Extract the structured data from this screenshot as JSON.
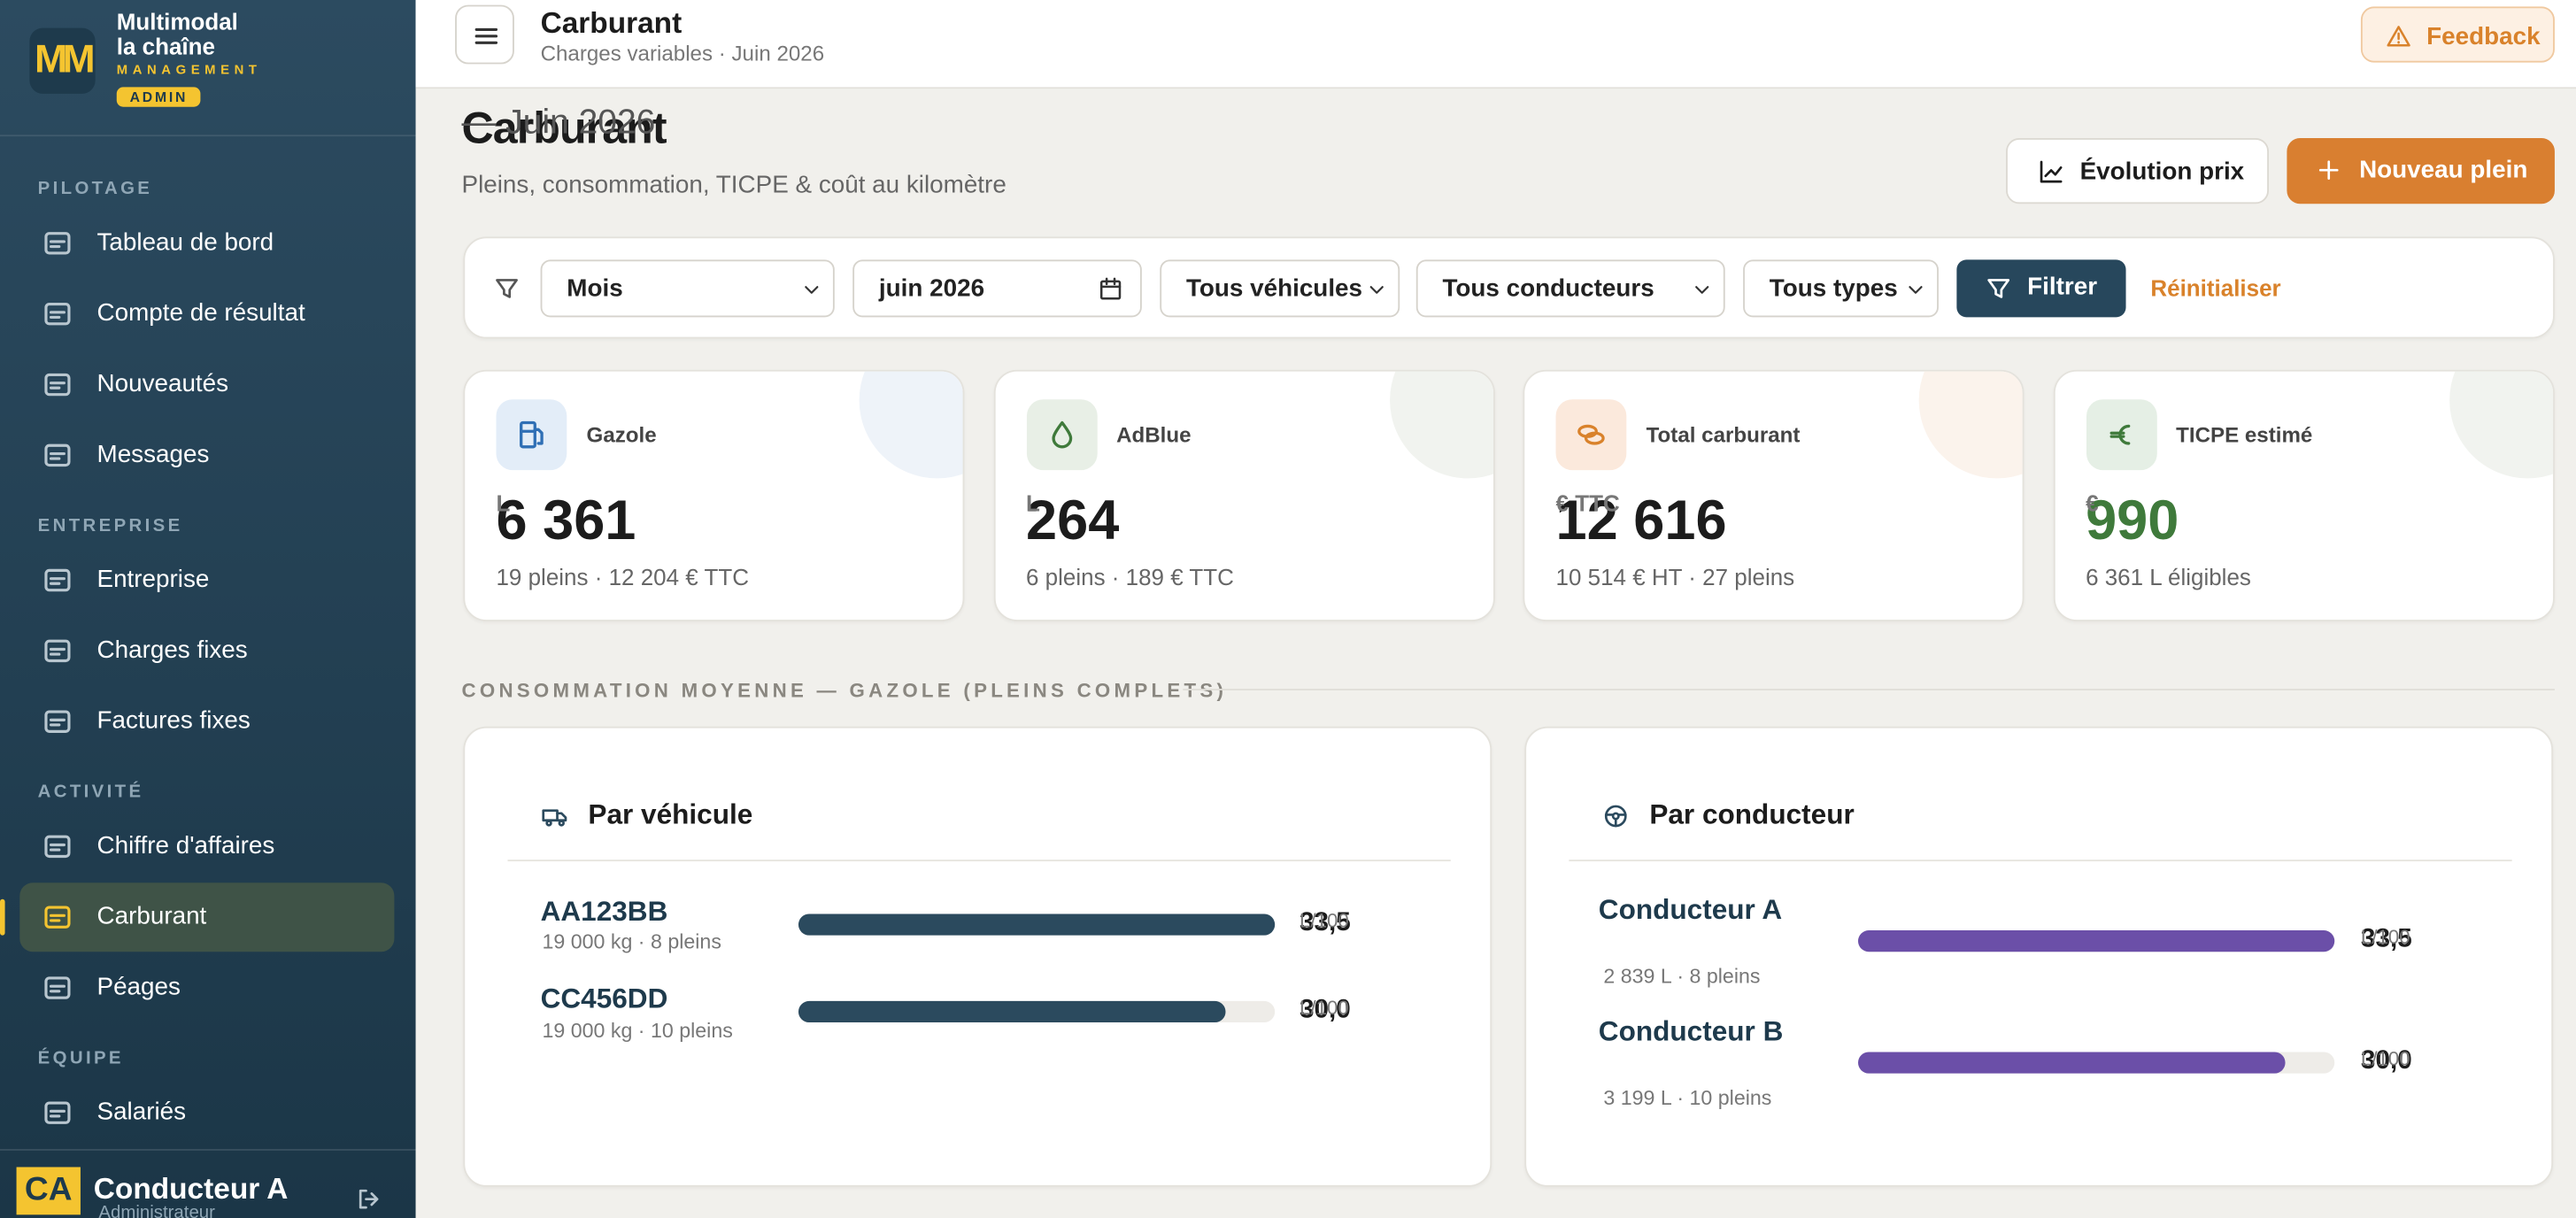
{
  "sidebar": {
    "brand": {
      "logo": "MM",
      "line1": "Multimodal",
      "line2": "la chaîne",
      "tag": "MANAGEMENT",
      "badge": "ADMIN"
    },
    "sections": [
      {
        "title": "PILOTAGE",
        "items": [
          "Tableau de bord",
          "Compte de résultat",
          "Nouveautés",
          "Messages"
        ]
      },
      {
        "title": "ENTREPRISE",
        "items": [
          "Entreprise",
          "Charges fixes",
          "Factures fixes"
        ]
      },
      {
        "title": "ACTIVITÉ",
        "items": [
          "Chiffre d'affaires",
          "Carburant",
          "Péages"
        ]
      },
      {
        "title": "ÉQUIPE",
        "items": [
          "Salariés"
        ]
      }
    ],
    "active": "Carburant",
    "user": {
      "initials": "CA",
      "name": "Conducteur A",
      "role": "Administrateur"
    }
  },
  "topbar": {
    "title": "Carburant",
    "subtitle": "Charges variables · Juin 2026",
    "feedback": "Feedback"
  },
  "page": {
    "title": "Carburant",
    "period": "— Juin 2026",
    "description": "Pleins, consommation, TICPE & coût au kilomètre",
    "buttons": [
      "Évolution prix",
      "Nouveau plein"
    ]
  },
  "filters": {
    "period": "Mois",
    "date": "juin 2026",
    "vehicles": "Tous véhicules",
    "drivers": "Tous conducteurs",
    "types": "Tous types",
    "apply": "Filtrer",
    "reset": "Réinitialiser"
  },
  "kpis": [
    {
      "label": "Gazole",
      "value": "6 361",
      "unit": "L",
      "detail": "19 pleins · 12 204 € TTC"
    },
    {
      "label": "AdBlue",
      "value": "264",
      "unit": "L",
      "detail": "6 pleins · 189 € TTC"
    },
    {
      "label": "Total carburant",
      "value": "12 616",
      "unit": "€ TTC",
      "detail": "10 514 € HT · 27 pleins"
    },
    {
      "label": "TICPE estimé",
      "value": "990",
      "unit": "€",
      "detail": "6 361 L éligibles"
    }
  ],
  "section_title": "CONSOMMATION MOYENNE — GAZOLE (PLEINS COMPLETS)",
  "panels": [
    {
      "title": "Par véhicule",
      "rows": [
        {
          "name": "AA123BB",
          "detail": "19 000 kg · 8 pleins",
          "value": 33.5,
          "label": "33,5",
          "unit": "L/100"
        },
        {
          "name": "CC456DD",
          "detail": "19 000 kg · 10 pleins",
          "value": 30.0,
          "label": "30,0",
          "unit": "L/100"
        }
      ]
    },
    {
      "title": "Par conducteur",
      "rows": [
        {
          "name": "Conducteur A",
          "detail": "2 839 L · 8 pleins",
          "value": 33.5,
          "label": "33,5",
          "unit": "L/100"
        },
        {
          "name": "Conducteur B",
          "detail": "3 199 L · 10 pleins",
          "value": 30.0,
          "label": "30,0",
          "unit": "L/100"
        }
      ]
    }
  ]
}
